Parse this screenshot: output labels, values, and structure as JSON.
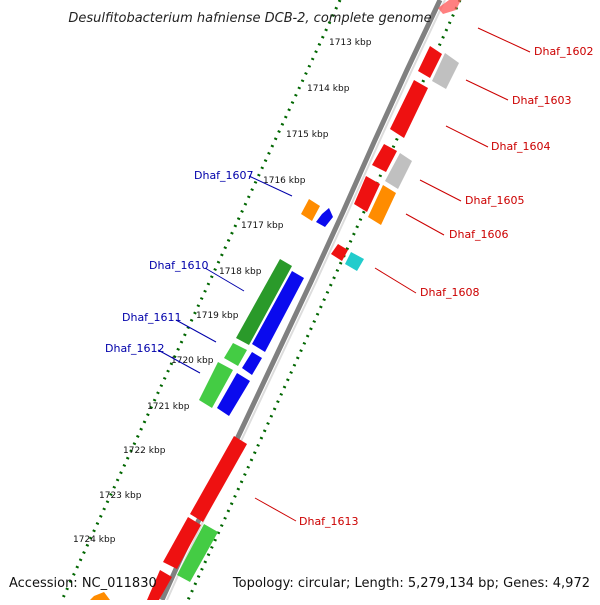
{
  "title": "Desulfitobacterium hafniense DCB-2, complete genome",
  "accession": "Accession: NC_011830",
  "topology": "Topology: circular; Length: 5,279,134 bp; Genes: 4,972",
  "kbp_labels": [
    "1713 kbp",
    "1714 kbp",
    "1715 kbp",
    "1716 kbp",
    "1717 kbp",
    "1718 kbp",
    "1719 kbp",
    "1720 kbp",
    "1721 kbp",
    "1722 kbp",
    "1723 kbp",
    "1724 kbp"
  ],
  "gene_labels_right": [
    "Dhaf_1602",
    "Dhaf_1603",
    "Dhaf_1604",
    "Dhaf_1605",
    "Dhaf_1606",
    "Dhaf_1608",
    "Dhaf_1613"
  ],
  "gene_labels_left": [
    "Dhaf_1607",
    "Dhaf_1610",
    "Dhaf_1611",
    "Dhaf_1612"
  ],
  "colors": {
    "forward_label": "#cc0000",
    "reverse_label": "#0000aa",
    "red_gene": "#ee1111",
    "gray_gene": "#bbbbbb",
    "orange_gene": "#ff8c00",
    "blue_gene": "#0a0aee",
    "green_dark": "#2a9a2a",
    "green_light": "#44cc44",
    "cyan_gene": "#22cccc",
    "backbone": "#888888",
    "ticks": "#006600"
  }
}
